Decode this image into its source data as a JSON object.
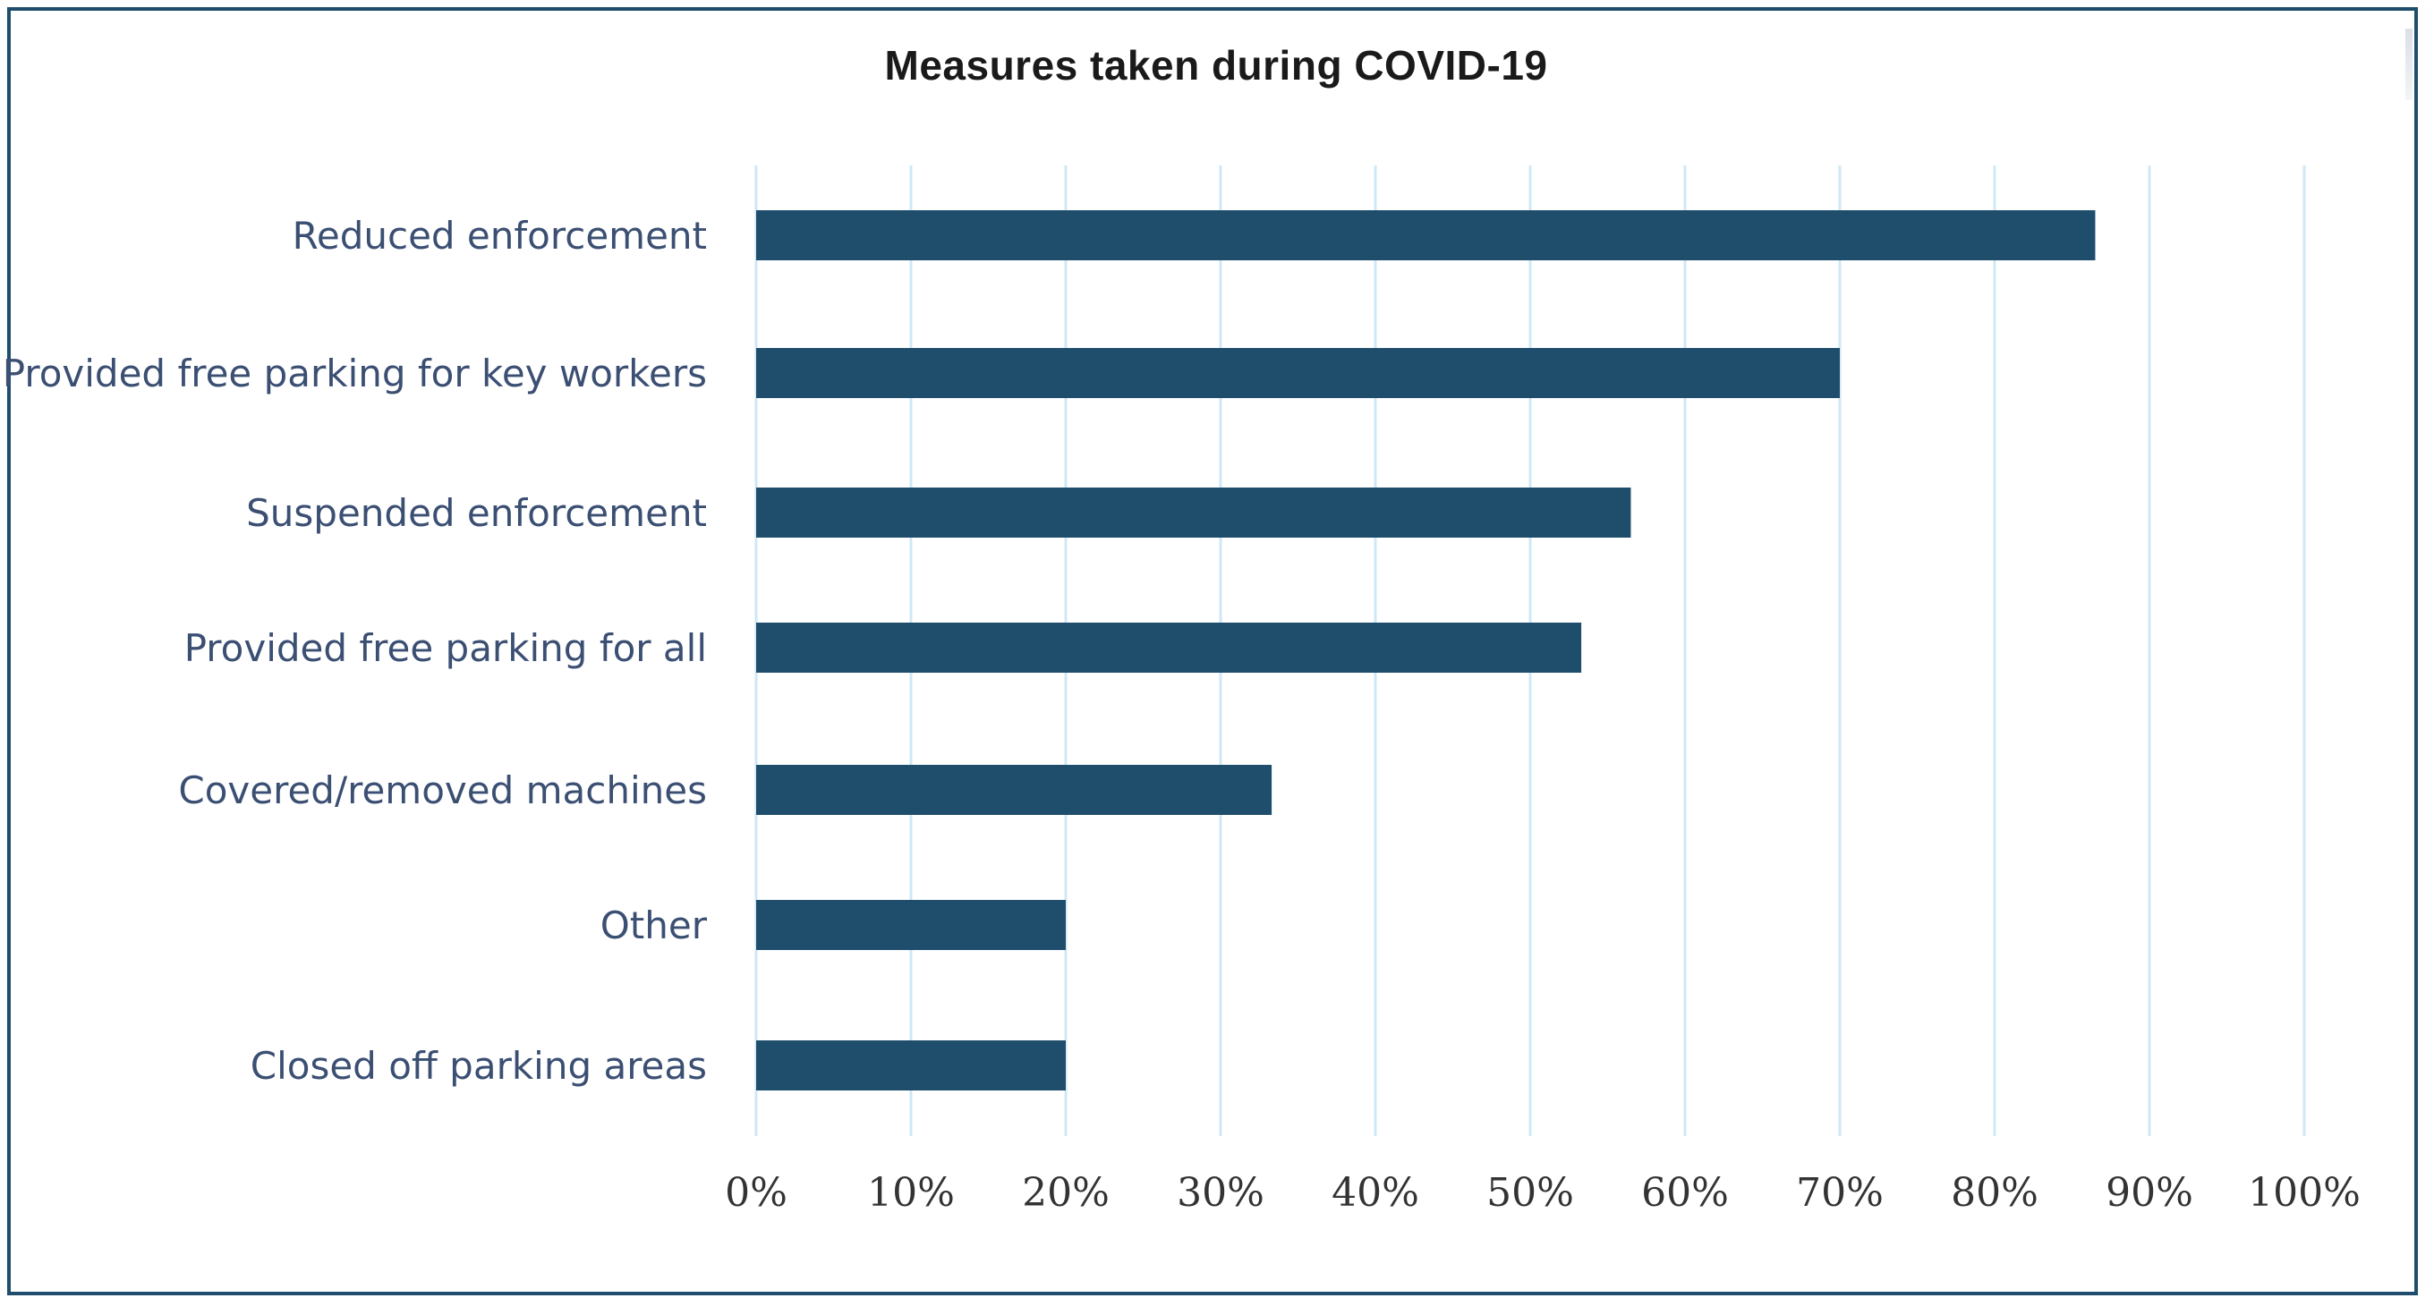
{
  "chart_data": {
    "type": "bar",
    "orientation": "horizontal",
    "title": "Measures taken during COVID-19",
    "categories": [
      "Reduced enforcement",
      "Provided free parking for key workers",
      "Suspended enforcement",
      "Provided free parking for all",
      "Covered/removed machines",
      "Other",
      "Closed off parking areas"
    ],
    "values": [
      86.5,
      70,
      56.5,
      53.3,
      33.3,
      20,
      20
    ],
    "xlim": [
      0,
      100
    ],
    "xticks": [
      "0%",
      "10%",
      "20%",
      "30%",
      "40%",
      "50%",
      "60%",
      "70%",
      "80%",
      "90%",
      "100%"
    ],
    "grid": "vertical",
    "legend": "none",
    "colors": {
      "bar": "#1f4e6d",
      "grid": "#cfe8f7",
      "category_text": "#3b4f73",
      "tick_text": "#333333",
      "border": "#1f4e6d"
    }
  }
}
